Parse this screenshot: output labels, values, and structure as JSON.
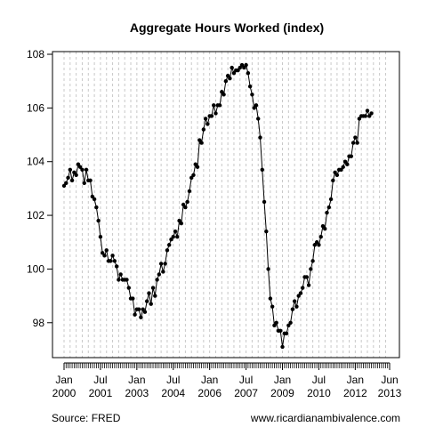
{
  "chart_data": {
    "type": "line",
    "title": "Aggregate Hours Worked (index)",
    "xlabel": "",
    "ylabel": "",
    "ylim": [
      96.7,
      108.1
    ],
    "yticks": [
      98,
      100,
      102,
      104,
      106,
      108
    ],
    "x_range": [
      "2000-01",
      "2013-06"
    ],
    "x_major_ticks": [
      {
        "date": "2000-01",
        "line1": "Jan",
        "line2": "2000"
      },
      {
        "date": "2001-07",
        "line1": "Jul",
        "line2": "2001"
      },
      {
        "date": "2003-01",
        "line1": "Jan",
        "line2": "2003"
      },
      {
        "date": "2004-07",
        "line1": "Jul",
        "line2": "2004"
      },
      {
        "date": "2006-01",
        "line1": "Jan",
        "line2": "2006"
      },
      {
        "date": "2007-07",
        "line1": "Jul",
        "line2": "2007"
      },
      {
        "date": "2009-01",
        "line1": "Jan",
        "line2": "2009"
      },
      {
        "date": "2010-07",
        "line1": "Jul",
        "line2": "2010"
      },
      {
        "date": "2012-01",
        "line1": "Jan",
        "line2": "2012"
      },
      {
        "date": "2013-06",
        "line1": "Jun",
        "line2": "2013"
      }
    ],
    "grid": "vertical dashed, every 3 months",
    "series": [
      {
        "start": "2000-01",
        "frequency": "monthly",
        "values": [
          103.1,
          103.2,
          103.4,
          103.7,
          103.3,
          103.6,
          103.5,
          103.9,
          103.8,
          103.7,
          103.2,
          103.7,
          103.3,
          103.3,
          102.7,
          102.6,
          102.3,
          101.8,
          101.2,
          100.6,
          100.5,
          100.7,
          100.3,
          100.3,
          100.5,
          100.3,
          100.1,
          99.6,
          99.8,
          99.6,
          99.6,
          99.6,
          99.3,
          98.9,
          98.9,
          98.3,
          98.5,
          98.5,
          98.2,
          98.5,
          98.4,
          98.8,
          99.1,
          98.7,
          99.3,
          99.0,
          99.6,
          99.8,
          100.2,
          99.9,
          100.2,
          100.7,
          100.9,
          101.1,
          101.2,
          101.4,
          101.2,
          101.8,
          101.7,
          102.4,
          102.3,
          102.5,
          102.9,
          103.4,
          103.5,
          103.9,
          103.8,
          104.8,
          104.7,
          105.2,
          105.6,
          105.4,
          105.7,
          105.7,
          106.1,
          105.8,
          106.1,
          106.1,
          106.6,
          106.5,
          107.0,
          107.2,
          107.1,
          107.5,
          107.3,
          107.4,
          107.4,
          107.5,
          107.6,
          107.5,
          107.6,
          107.3,
          106.8,
          106.5,
          106.0,
          106.1,
          105.6,
          104.9,
          103.7,
          102.5,
          101.4,
          100.0,
          98.9,
          98.6,
          97.9,
          98.0,
          97.7,
          97.7,
          97.1,
          97.6,
          97.6,
          97.9,
          98.0,
          98.5,
          98.8,
          98.6,
          99.0,
          99.1,
          99.3,
          99.7,
          99.7,
          99.4,
          100.0,
          100.3,
          100.9,
          101.0,
          100.9,
          101.2,
          101.6,
          101.5,
          102.1,
          102.3,
          102.6,
          103.3,
          103.6,
          103.5,
          103.7,
          103.7,
          103.8,
          104.0,
          103.9,
          104.2,
          104.2,
          104.7,
          104.9,
          104.7,
          105.6,
          105.7,
          105.7,
          105.7,
          105.9,
          105.7,
          105.8
        ]
      }
    ]
  },
  "footer": {
    "source": "Source: FRED",
    "website": "www.ricardianambivalence.com"
  }
}
